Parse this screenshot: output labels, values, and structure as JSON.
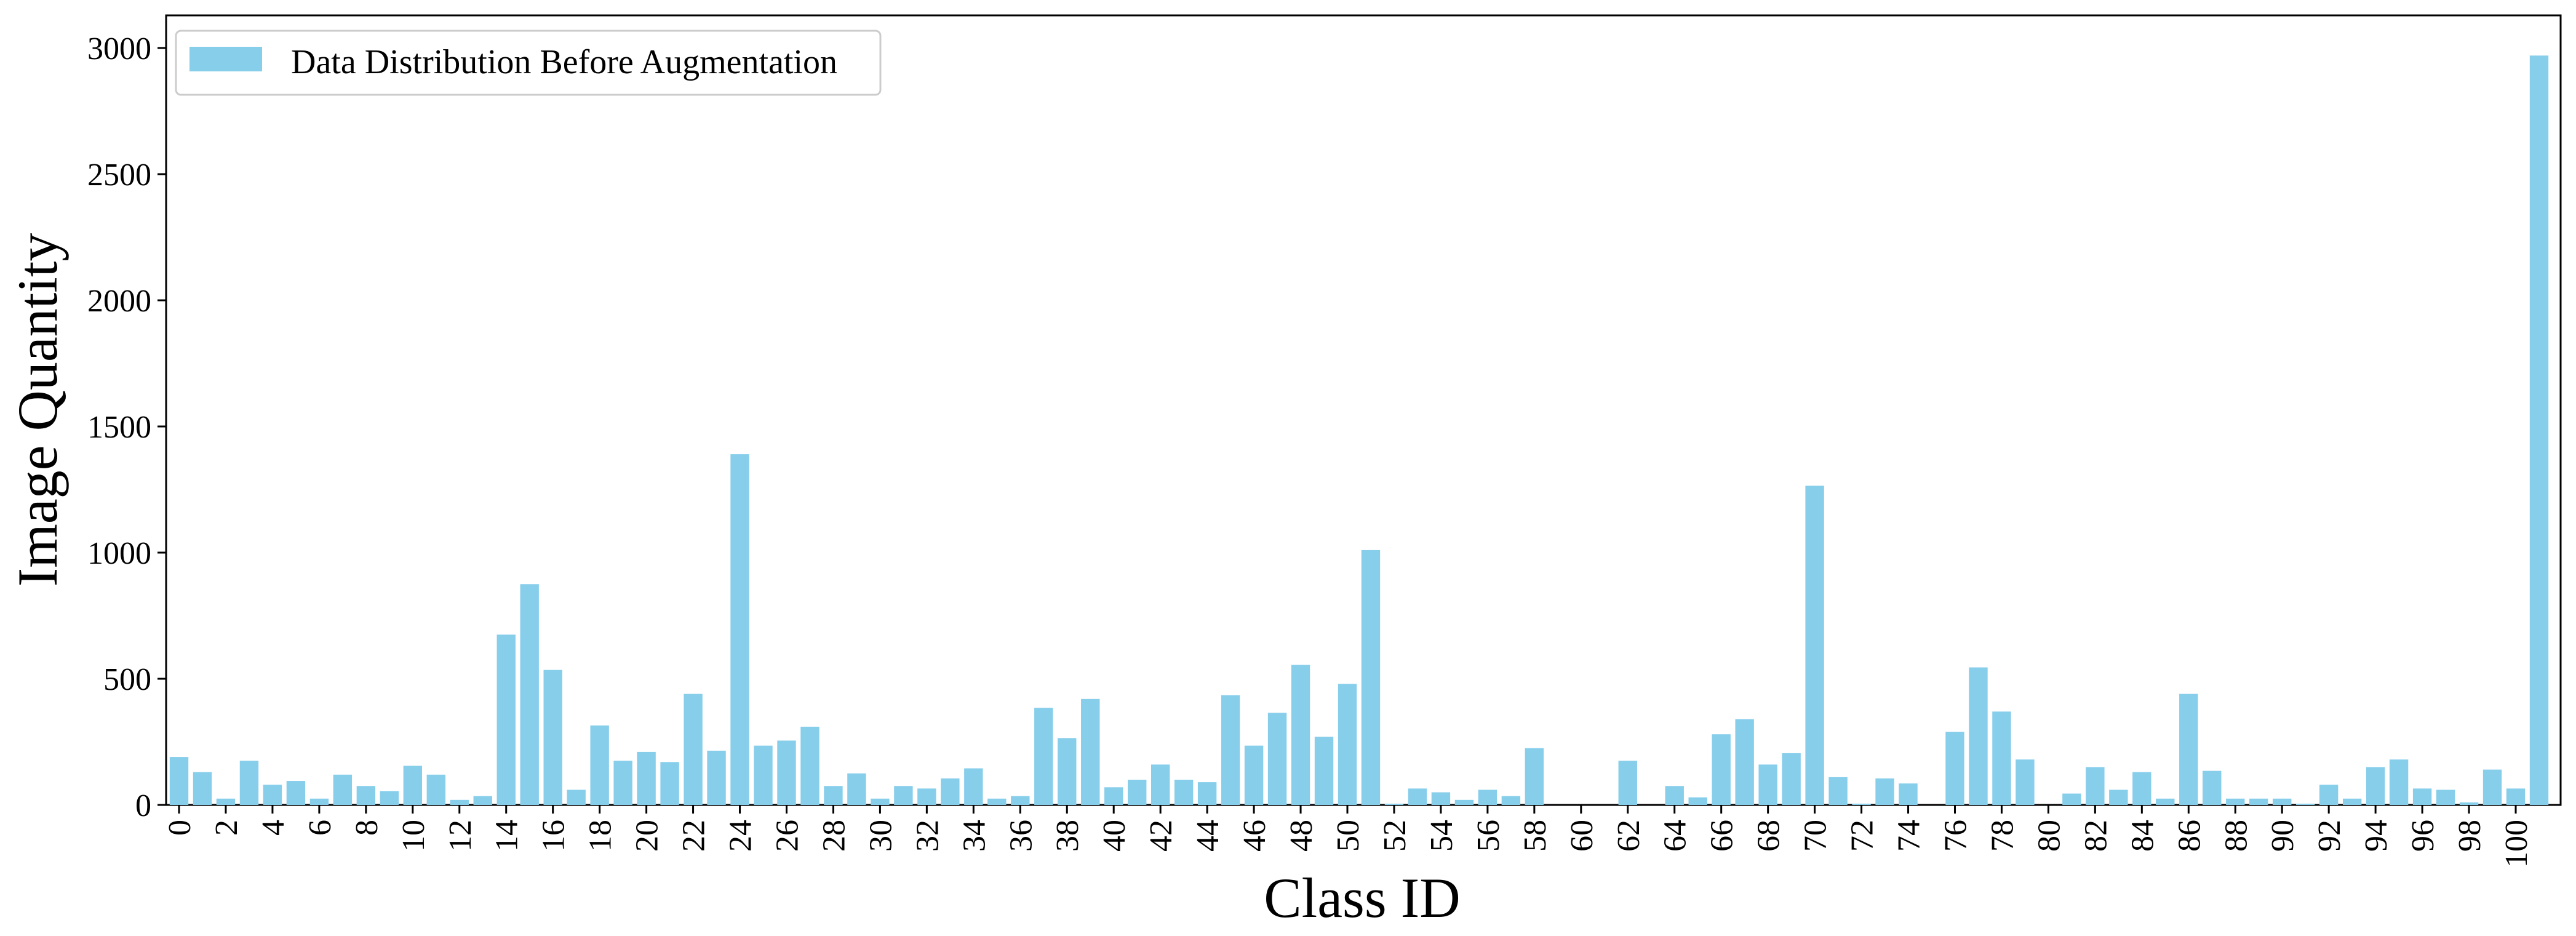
{
  "chart_data": {
    "type": "bar",
    "title": "",
    "xlabel": "Class ID",
    "ylabel": "Image Quantity",
    "ylim": [
      0,
      3100
    ],
    "yticks": [
      0,
      500,
      1000,
      1500,
      2000,
      2500,
      3000
    ],
    "grid": false,
    "legend": {
      "placement": "top-left",
      "entries": [
        "Data Distribution Before Augmentation"
      ]
    },
    "bar_color": "#87CEEB",
    "categories": [
      0,
      1,
      2,
      3,
      4,
      5,
      6,
      7,
      8,
      9,
      10,
      11,
      12,
      13,
      14,
      15,
      16,
      17,
      18,
      19,
      20,
      21,
      22,
      23,
      24,
      25,
      26,
      27,
      28,
      29,
      30,
      31,
      32,
      33,
      34,
      35,
      36,
      37,
      38,
      39,
      40,
      41,
      42,
      43,
      44,
      45,
      46,
      47,
      48,
      49,
      50,
      51,
      52,
      53,
      54,
      55,
      56,
      57,
      58,
      59,
      60,
      61,
      62,
      63,
      64,
      65,
      66,
      67,
      68,
      69,
      70,
      71,
      72,
      73,
      74,
      75,
      76,
      77,
      78,
      79,
      80,
      81,
      82,
      83,
      84,
      85,
      86,
      87,
      88,
      89,
      90,
      91,
      92,
      93,
      94,
      95,
      96,
      97,
      98,
      99,
      100,
      101
    ],
    "xtick_labels": [
      "0",
      "2",
      "4",
      "6",
      "8",
      "10",
      "12",
      "14",
      "16",
      "18",
      "20",
      "22",
      "24",
      "26",
      "28",
      "30",
      "32",
      "34",
      "36",
      "38",
      "40",
      "42",
      "44",
      "46",
      "48",
      "50",
      "52",
      "54",
      "56",
      "58",
      "60",
      "62",
      "64",
      "66",
      "68",
      "70",
      "72",
      "74",
      "76",
      "78",
      "80",
      "82",
      "84",
      "86",
      "88",
      "90",
      "92",
      "94",
      "96",
      "98",
      "100"
    ],
    "series": [
      {
        "name": "Data Distribution Before Augmentation",
        "values": [
          190,
          130,
          25,
          175,
          80,
          95,
          25,
          120,
          75,
          55,
          155,
          120,
          20,
          35,
          675,
          875,
          535,
          60,
          315,
          175,
          210,
          170,
          440,
          215,
          1390,
          235,
          255,
          310,
          75,
          125,
          25,
          75,
          65,
          105,
          145,
          25,
          35,
          385,
          265,
          420,
          70,
          100,
          160,
          100,
          90,
          435,
          235,
          365,
          555,
          270,
          480,
          1010,
          5,
          65,
          50,
          20,
          60,
          35,
          225,
          0,
          0,
          0,
          175,
          0,
          75,
          30,
          280,
          340,
          160,
          205,
          1265,
          110,
          5,
          105,
          85,
          0,
          290,
          545,
          370,
          180,
          0,
          45,
          150,
          60,
          130,
          25,
          440,
          135,
          25,
          25,
          25,
          5,
          80,
          25,
          150,
          180,
          65,
          60,
          10,
          140,
          65,
          2970
        ]
      }
    ]
  }
}
